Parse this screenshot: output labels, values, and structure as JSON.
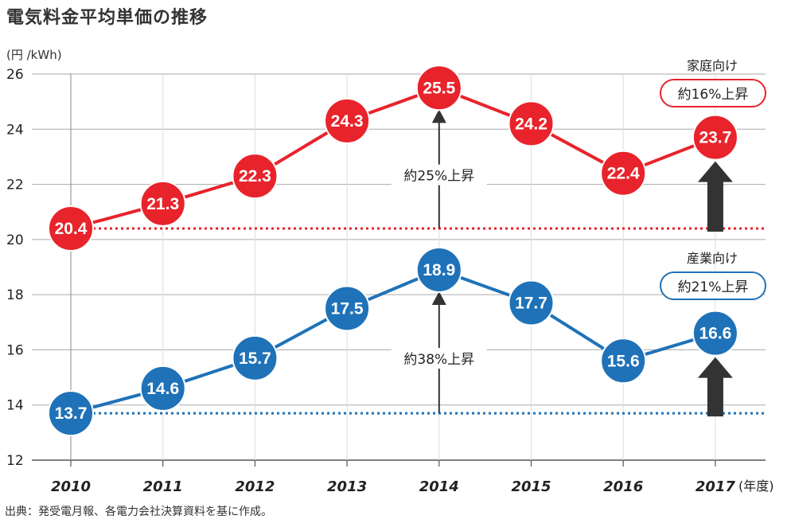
{
  "title": "電気料金平均単価の推移",
  "source": "出典：発受電月報、各電力会社決算資料を基に作成。",
  "chart_data": {
    "type": "line",
    "ylabel": "(円 /kWh)",
    "xunit": "(年度)",
    "ylim": [
      12,
      26
    ],
    "yticks": [
      12,
      14,
      16,
      18,
      20,
      22,
      24,
      26
    ],
    "categories": [
      "2010",
      "2011",
      "2012",
      "2013",
      "2014",
      "2015",
      "2016",
      "2017"
    ],
    "grid": true,
    "series": [
      {
        "name": "家庭向け",
        "badge": "約16%上昇",
        "color": "#e8232b",
        "values": [
          20.4,
          21.3,
          22.3,
          24.3,
          25.5,
          24.2,
          22.4,
          23.7
        ],
        "baseline": 20.4,
        "rise_note": "約25%上昇"
      },
      {
        "name": "産業向け",
        "badge": "約21%上昇",
        "color": "#1f72b8",
        "values": [
          13.7,
          14.6,
          15.7,
          17.5,
          18.9,
          17.7,
          15.6,
          16.6
        ],
        "baseline": 13.7,
        "rise_note": "約38%上昇"
      }
    ]
  }
}
